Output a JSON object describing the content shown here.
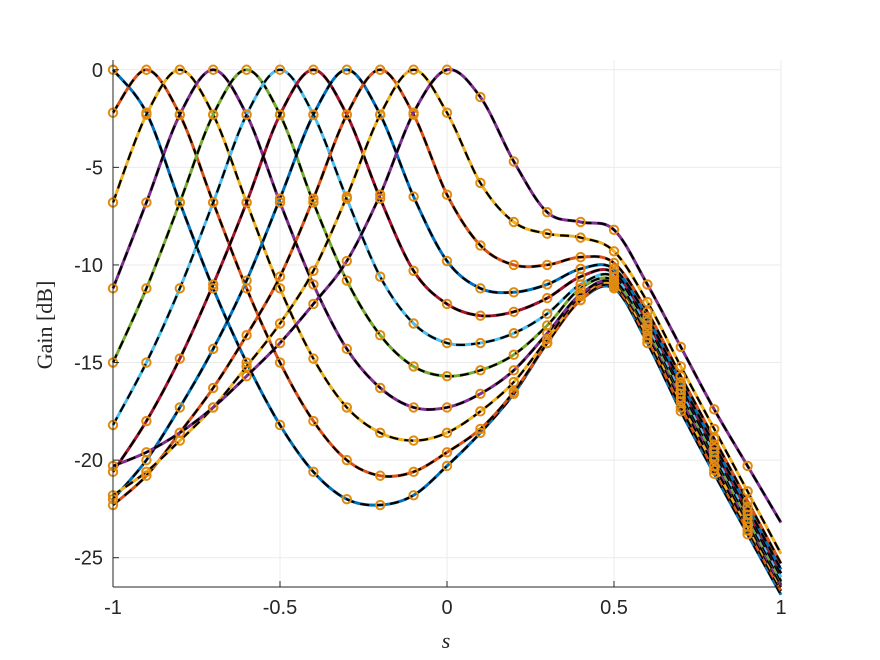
{
  "chart_data": {
    "type": "line",
    "title": "",
    "xlabel": "s",
    "ylabel": "Gain [dB]",
    "xlim": [
      -1,
      1
    ],
    "ylim": [
      -26.5,
      0.5
    ],
    "xticks": [
      -1,
      -0.5,
      0,
      0.5,
      1
    ],
    "xtick_labels": [
      "-1",
      "-0.5",
      "0",
      "0.5",
      "1"
    ],
    "yticks": [
      0,
      -5,
      -10,
      -15,
      -20,
      -25
    ],
    "ytick_labels": [
      "0",
      "-5",
      "-10",
      "-15",
      "-20",
      "-25"
    ],
    "grid": true,
    "legend": "none",
    "colors": {
      "series_palette": [
        "#0072BD",
        "#D95319",
        "#EDB120",
        "#7E2F8E",
        "#77AC30",
        "#4DBEEE",
        "#A2142F",
        "#0072BD",
        "#D95319",
        "#EDB120",
        "#7E2F8E"
      ],
      "reference_line": "#000000",
      "marker": "#E08A10"
    },
    "marker_x": [
      -1,
      -0.9,
      -0.8,
      -0.7,
      -0.6,
      -0.5,
      -0.4,
      -0.3,
      -0.2,
      -0.1,
      0,
      0.1,
      0.2,
      0.3,
      0.4,
      0.5,
      0.6,
      0.7,
      0.8,
      0.9
    ],
    "series": [
      {
        "peak_s": -1.0,
        "values": [
          0.0,
          -2.2,
          -6.8,
          -11.2,
          -15.0,
          -18.2,
          -20.6,
          -22.0,
          -22.3,
          -21.8,
          -20.3,
          -18.6,
          -16.6,
          -14.0,
          -11.8,
          -11.2,
          -14.0,
          -17.5,
          -20.7,
          -23.8
        ]
      },
      {
        "peak_s": -0.9,
        "values": [
          -2.2,
          0.0,
          -2.3,
          -6.8,
          -11.2,
          -15.0,
          -18.0,
          -20.0,
          -20.8,
          -20.6,
          -19.6,
          -18.4,
          -16.5,
          -14.0,
          -11.8,
          -11.1,
          -13.8,
          -17.3,
          -20.5,
          -23.6
        ]
      },
      {
        "peak_s": -0.8,
        "values": [
          -6.8,
          -2.3,
          0.0,
          -2.3,
          -6.8,
          -11.2,
          -14.8,
          -17.3,
          -18.6,
          -19.0,
          -18.6,
          -17.5,
          -16.0,
          -13.8,
          -11.6,
          -11.0,
          -13.6,
          -17.0,
          -20.3,
          -23.4
        ]
      },
      {
        "peak_s": -0.7,
        "values": [
          -11.2,
          -6.8,
          -2.3,
          0.0,
          -2.3,
          -6.8,
          -11.0,
          -14.3,
          -16.3,
          -17.3,
          -17.3,
          -16.6,
          -15.4,
          -13.5,
          -11.5,
          -10.9,
          -13.4,
          -16.8,
          -20.0,
          -23.2
        ]
      },
      {
        "peak_s": -0.6,
        "values": [
          -15.0,
          -11.2,
          -6.8,
          -2.3,
          0.0,
          -2.3,
          -6.8,
          -10.8,
          -13.6,
          -15.2,
          -15.7,
          -15.4,
          -14.6,
          -13.1,
          -11.2,
          -10.8,
          -13.3,
          -16.6,
          -19.8,
          -23.0
        ]
      },
      {
        "peak_s": -0.5,
        "values": [
          -18.2,
          -15.0,
          -11.2,
          -6.8,
          -2.3,
          0.0,
          -2.3,
          -6.6,
          -10.6,
          -13.0,
          -14.0,
          -14.0,
          -13.5,
          -12.5,
          -11.0,
          -10.6,
          -13.1,
          -16.4,
          -19.6,
          -22.8
        ]
      },
      {
        "peak_s": -0.4,
        "values": [
          -20.6,
          -18.0,
          -14.8,
          -11.0,
          -6.8,
          -2.3,
          0.0,
          -2.3,
          -6.6,
          -10.3,
          -12.0,
          -12.6,
          -12.4,
          -11.7,
          -10.6,
          -10.4,
          -12.9,
          -16.2,
          -19.4,
          -22.6
        ]
      },
      {
        "peak_s": -0.3,
        "values": [
          -22.0,
          -20.0,
          -17.3,
          -14.3,
          -10.8,
          -6.6,
          -2.3,
          0.0,
          -2.3,
          -6.5,
          -9.8,
          -11.2,
          -11.4,
          -11.0,
          -10.2,
          -10.2,
          -12.7,
          -16.0,
          -19.2,
          -22.4
        ]
      },
      {
        "peak_s": -0.2,
        "values": [
          -22.3,
          -20.8,
          -18.6,
          -16.3,
          -13.6,
          -10.6,
          -6.6,
          -2.3,
          0.0,
          -2.3,
          -6.4,
          -9.0,
          -10.0,
          -10.0,
          -9.6,
          -9.9,
          -12.4,
          -15.7,
          -18.9,
          -22.1
        ]
      },
      {
        "peak_s": -0.1,
        "values": [
          -21.8,
          -20.6,
          -19.0,
          -17.3,
          -15.2,
          -13.0,
          -10.3,
          -6.5,
          -2.3,
          0.0,
          -2.2,
          -5.8,
          -7.8,
          -8.4,
          -8.6,
          -9.3,
          -11.9,
          -15.2,
          -18.4,
          -21.6
        ]
      },
      {
        "peak_s": 0.0,
        "values": [
          -20.3,
          -19.6,
          -18.6,
          -17.3,
          -15.7,
          -14.0,
          -12.0,
          -9.8,
          -6.4,
          -2.2,
          0.0,
          -1.4,
          -4.7,
          -7.3,
          -7.8,
          -8.2,
          -11.0,
          -14.2,
          -17.4,
          -20.3
        ]
      }
    ]
  }
}
